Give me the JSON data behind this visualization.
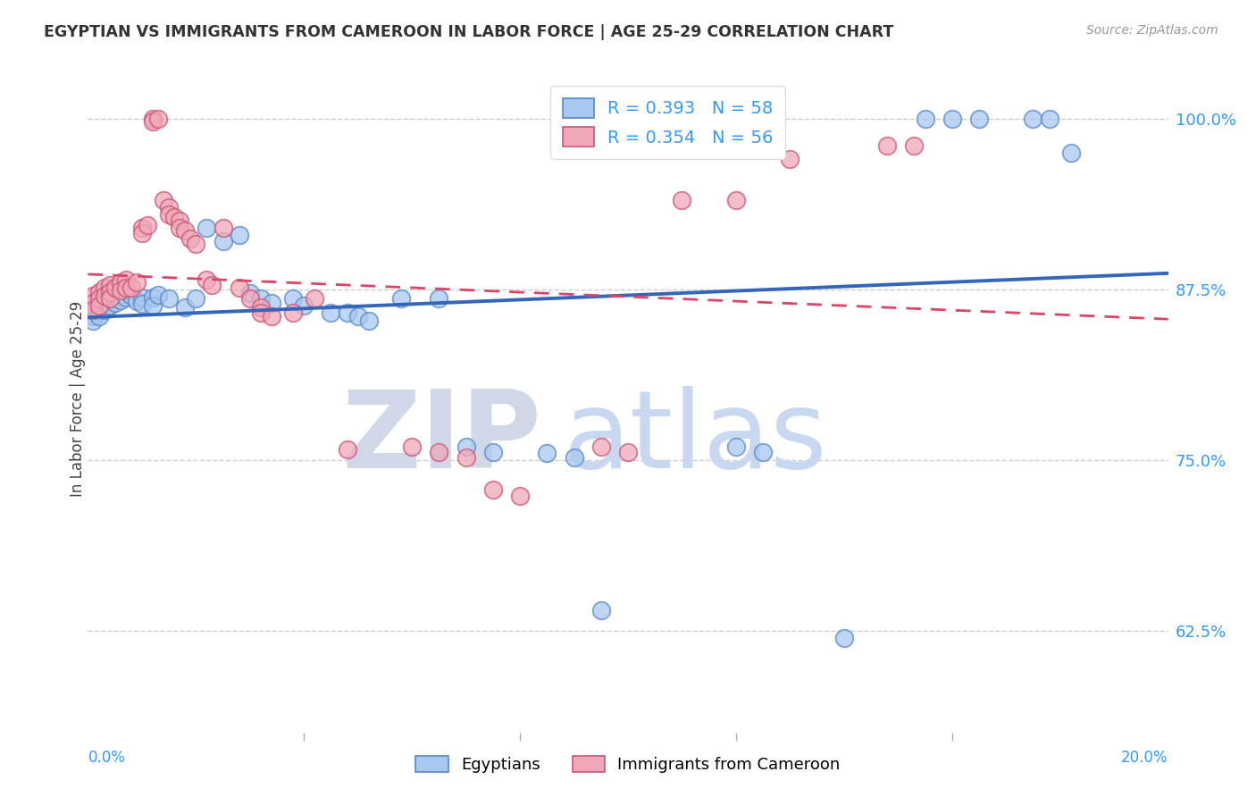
{
  "title": "EGYPTIAN VS IMMIGRANTS FROM CAMEROON IN LABOR FORCE | AGE 25-29 CORRELATION CHART",
  "source": "Source: ZipAtlas.com",
  "ylabel": "In Labor Force | Age 25-29",
  "yticks": [
    0.625,
    0.75,
    0.875,
    1.0
  ],
  "ytick_labels": [
    "62.5%",
    "75.0%",
    "87.5%",
    "100.0%"
  ],
  "xtick_labels": [
    "0.0%",
    "20.0%"
  ],
  "xmin": 0.0,
  "xmax": 0.2,
  "ymin": 0.55,
  "ymax": 1.04,
  "color_blue": "#A8C8F0",
  "color_pink": "#F0A8B8",
  "edge_blue": "#5588CC",
  "edge_pink": "#CC5577",
  "trendline_blue": "#3366BB",
  "trendline_pink": "#DD4466",
  "watermark_zip": "ZIP",
  "watermark_atlas": "atlas",
  "scatter_blue": [
    [
      0.001,
      0.862
    ],
    [
      0.001,
      0.858
    ],
    [
      0.001,
      0.855
    ],
    [
      0.001,
      0.852
    ],
    [
      0.002,
      0.868
    ],
    [
      0.002,
      0.863
    ],
    [
      0.002,
      0.859
    ],
    [
      0.002,
      0.855
    ],
    [
      0.003,
      0.87
    ],
    [
      0.003,
      0.865
    ],
    [
      0.003,
      0.86
    ],
    [
      0.004,
      0.872
    ],
    [
      0.004,
      0.868
    ],
    [
      0.004,
      0.863
    ],
    [
      0.005,
      0.87
    ],
    [
      0.005,
      0.865
    ],
    [
      0.006,
      0.872
    ],
    [
      0.006,
      0.867
    ],
    [
      0.007,
      0.875
    ],
    [
      0.007,
      0.869
    ],
    [
      0.008,
      0.87
    ],
    [
      0.009,
      0.866
    ],
    [
      0.01,
      0.869
    ],
    [
      0.01,
      0.864
    ],
    [
      0.012,
      0.869
    ],
    [
      0.012,
      0.863
    ],
    [
      0.013,
      0.871
    ],
    [
      0.015,
      0.868
    ],
    [
      0.018,
      0.862
    ],
    [
      0.02,
      0.868
    ],
    [
      0.022,
      0.92
    ],
    [
      0.025,
      0.91
    ],
    [
      0.028,
      0.915
    ],
    [
      0.03,
      0.872
    ],
    [
      0.032,
      0.868
    ],
    [
      0.034,
      0.865
    ],
    [
      0.038,
      0.868
    ],
    [
      0.04,
      0.863
    ],
    [
      0.045,
      0.858
    ],
    [
      0.048,
      0.858
    ],
    [
      0.05,
      0.855
    ],
    [
      0.052,
      0.852
    ],
    [
      0.058,
      0.868
    ],
    [
      0.065,
      0.868
    ],
    [
      0.07,
      0.76
    ],
    [
      0.075,
      0.756
    ],
    [
      0.085,
      0.755
    ],
    [
      0.09,
      0.752
    ],
    [
      0.095,
      0.64
    ],
    [
      0.12,
      0.76
    ],
    [
      0.125,
      0.756
    ],
    [
      0.155,
      1.0
    ],
    [
      0.16,
      1.0
    ],
    [
      0.165,
      1.0
    ],
    [
      0.175,
      1.0
    ],
    [
      0.178,
      1.0
    ],
    [
      0.182,
      0.975
    ],
    [
      0.14,
      0.62
    ]
  ],
  "scatter_pink": [
    [
      0.001,
      0.87
    ],
    [
      0.001,
      0.865
    ],
    [
      0.001,
      0.86
    ],
    [
      0.002,
      0.873
    ],
    [
      0.002,
      0.868
    ],
    [
      0.002,
      0.863
    ],
    [
      0.003,
      0.876
    ],
    [
      0.003,
      0.87
    ],
    [
      0.004,
      0.878
    ],
    [
      0.004,
      0.873
    ],
    [
      0.004,
      0.868
    ],
    [
      0.005,
      0.876
    ],
    [
      0.006,
      0.88
    ],
    [
      0.006,
      0.874
    ],
    [
      0.007,
      0.882
    ],
    [
      0.007,
      0.876
    ],
    [
      0.008,
      0.876
    ],
    [
      0.009,
      0.88
    ],
    [
      0.01,
      0.92
    ],
    [
      0.01,
      0.916
    ],
    [
      0.011,
      0.922
    ],
    [
      0.012,
      1.0
    ],
    [
      0.012,
      0.998
    ],
    [
      0.013,
      1.0
    ],
    [
      0.014,
      0.94
    ],
    [
      0.015,
      0.935
    ],
    [
      0.015,
      0.93
    ],
    [
      0.016,
      0.928
    ],
    [
      0.017,
      0.925
    ],
    [
      0.017,
      0.92
    ],
    [
      0.018,
      0.918
    ],
    [
      0.019,
      0.912
    ],
    [
      0.02,
      0.908
    ],
    [
      0.022,
      0.882
    ],
    [
      0.023,
      0.878
    ],
    [
      0.025,
      0.92
    ],
    [
      0.028,
      0.876
    ],
    [
      0.03,
      0.868
    ],
    [
      0.032,
      0.862
    ],
    [
      0.032,
      0.858
    ],
    [
      0.034,
      0.855
    ],
    [
      0.038,
      0.858
    ],
    [
      0.042,
      0.868
    ],
    [
      0.048,
      0.758
    ],
    [
      0.06,
      0.76
    ],
    [
      0.065,
      0.756
    ],
    [
      0.07,
      0.752
    ],
    [
      0.075,
      0.728
    ],
    [
      0.08,
      0.724
    ],
    [
      0.095,
      0.76
    ],
    [
      0.1,
      0.756
    ],
    [
      0.11,
      0.94
    ],
    [
      0.12,
      0.94
    ],
    [
      0.13,
      0.97
    ],
    [
      0.148,
      0.98
    ],
    [
      0.153,
      0.98
    ]
  ]
}
